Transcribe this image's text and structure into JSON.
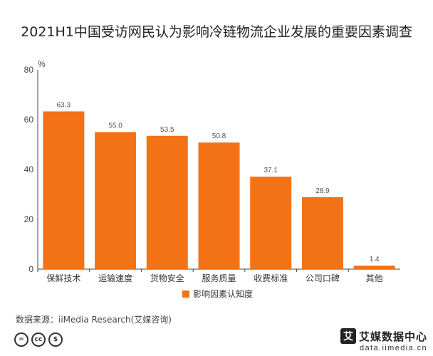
{
  "title": "2021H1中国受访网民认为影响冷链物流企业发展的重要因素调查",
  "unit_label": "%",
  "chart_data": {
    "type": "bar",
    "title": "2021H1中国受访网民认为影响冷链物流企业发展的重要因素调查",
    "categories": [
      "保鲜技术",
      "运输速度",
      "货物安全",
      "服务质量",
      "收费标准",
      "公司口碑",
      "其他"
    ],
    "series": [
      {
        "name": "影响因素认知度",
        "values": [
          63.3,
          55.0,
          53.5,
          50.8,
          37.1,
          28.9,
          1.4
        ],
        "color": "#F47216"
      }
    ],
    "value_labels": [
      "63.3",
      "55.0",
      "53.5",
      "50.8",
      "37.1",
      "28.9",
      "1.4"
    ],
    "yticks": [
      "0",
      "20",
      "40",
      "60",
      "80"
    ],
    "ylabel": "%",
    "ylim": [
      0,
      80
    ],
    "grid": false,
    "legend_position": "bottom"
  },
  "legend": {
    "label": "影响因素认知度",
    "color": "#F47216"
  },
  "source": "数据来源：iiMedia Research(艾媒咨询)",
  "license_icons": [
    "=",
    "cc",
    "$"
  ],
  "brand": {
    "logo_char": "艾",
    "name": "艾媒数据中心",
    "url": "data.iimedia.cn"
  }
}
